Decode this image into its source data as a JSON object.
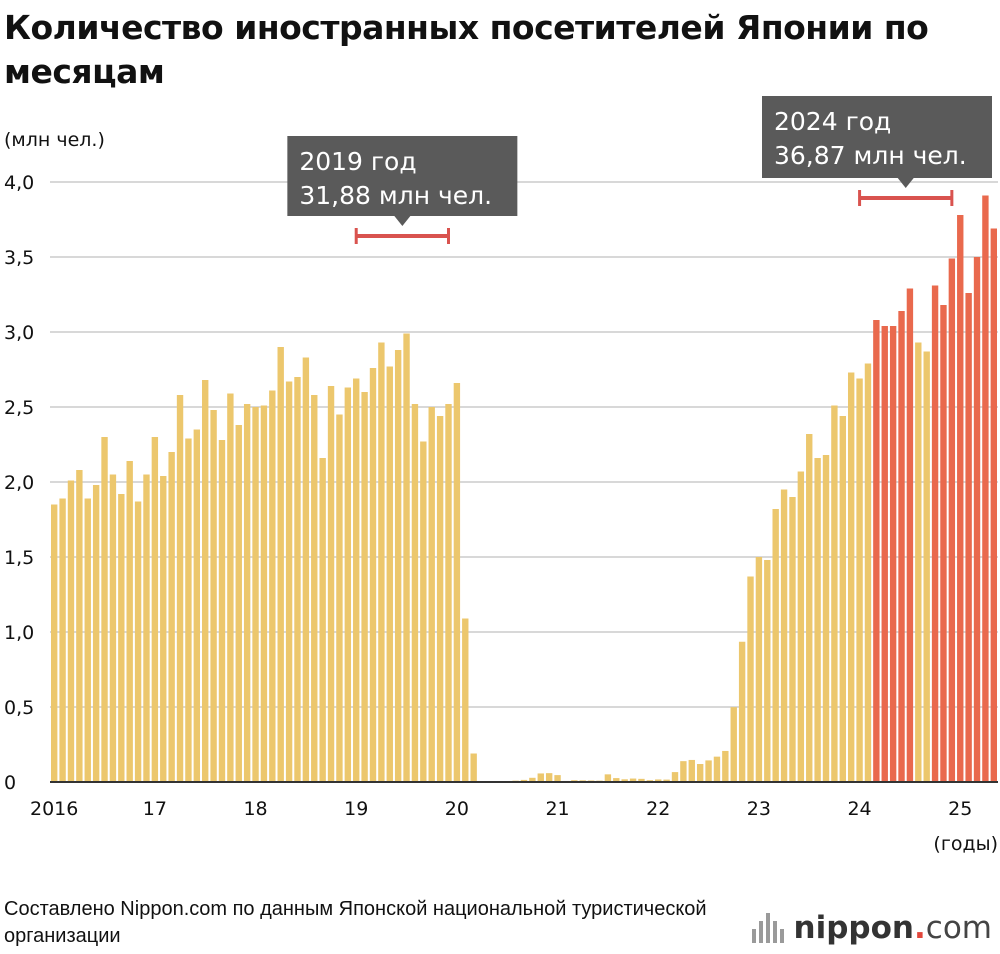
{
  "title": "Количество иностранных посетителей Японии по месяцам",
  "source": "Составлено Nippon.com по данным Японской национальной туристической организации",
  "logo": {
    "name": "nippon",
    "dot": ".",
    "suffix": "com"
  },
  "colors": {
    "yellow": "#ECC76D",
    "red": "#E9694D",
    "grid": "#cccccc",
    "callout_bg": "#5a5a5a",
    "bracket": "#d9534f"
  },
  "chart_data": {
    "type": "bar",
    "title": "Количество иностранных посетителей Японии по месяцам",
    "ylabel": "(млн чел.)",
    "xlabel": "(годы)",
    "ylim": [
      0,
      4.0
    ],
    "yticks": [
      0,
      0.5,
      1.0,
      1.5,
      2.0,
      2.5,
      3.0,
      3.5,
      4.0
    ],
    "ytick_labels": [
      "0",
      "0,5",
      "1,0",
      "1,5",
      "2,0",
      "2,5",
      "3,0",
      "3,5",
      "4,0"
    ],
    "xtick_labels": [
      "2016",
      "17",
      "18",
      "19",
      "20",
      "21",
      "22",
      "23",
      "24",
      "25"
    ],
    "annotations": [
      {
        "year": "2019",
        "line1": "2019 год",
        "line2": "31,88 млн чел."
      },
      {
        "year": "2024",
        "line1": "2024 год",
        "line2": "36,87 млн чел."
      }
    ],
    "series": [
      {
        "year": "2016",
        "highlight": false,
        "values": [
          1.85,
          1.89,
          2.01,
          2.08,
          1.89,
          1.98,
          2.3,
          2.05,
          1.92,
          2.14,
          1.87,
          2.05
        ]
      },
      {
        "year": "2017",
        "highlight": false,
        "values": [
          2.3,
          2.04,
          2.2,
          2.58,
          2.29,
          2.35,
          2.68,
          2.48,
          2.28,
          2.59,
          2.38,
          2.52
        ]
      },
      {
        "year": "2018",
        "highlight": false,
        "values": [
          2.5,
          2.51,
          2.61,
          2.9,
          2.67,
          2.7,
          2.83,
          2.58,
          2.16,
          2.64,
          2.45,
          2.63
        ]
      },
      {
        "year": "2019",
        "highlight": false,
        "values": [
          2.69,
          2.6,
          2.76,
          2.93,
          2.77,
          2.88,
          2.99,
          2.52,
          2.27,
          2.5,
          2.44,
          2.52
        ]
      },
      {
        "year": "2020",
        "highlight": false,
        "values": [
          2.66,
          1.09,
          0.19,
          0.003,
          0.002,
          0.003,
          0.004,
          0.009,
          0.014,
          0.028,
          0.057,
          0.059
        ]
      },
      {
        "year": "2021",
        "highlight": false,
        "values": [
          0.046,
          0.007,
          0.012,
          0.011,
          0.01,
          0.009,
          0.051,
          0.026,
          0.018,
          0.023,
          0.021,
          0.012
        ]
      },
      {
        "year": "2022",
        "highlight": false,
        "values": [
          0.017,
          0.016,
          0.066,
          0.139,
          0.147,
          0.12,
          0.144,
          0.169,
          0.207,
          0.499,
          0.935,
          1.37
        ]
      },
      {
        "year": "2023",
        "highlight": false,
        "values": [
          1.5,
          1.48,
          1.82,
          1.95,
          1.9,
          2.07,
          2.32,
          2.16,
          2.18,
          2.51,
          2.44,
          2.73
        ]
      },
      {
        "year": "2024",
        "highlight": false,
        "values": [
          2.69,
          2.79
        ]
      },
      {
        "year": "2024",
        "highlight": true,
        "values": [
          3.08,
          3.04,
          3.04,
          3.14,
          3.29
        ]
      },
      {
        "year": "2024",
        "highlight": false,
        "values": [
          2.93,
          2.87
        ]
      },
      {
        "year": "2024",
        "highlight": true,
        "values": [
          3.31,
          3.18,
          3.49
        ]
      },
      {
        "year": "2025",
        "highlight": true,
        "values": [
          3.78,
          3.26,
          3.5,
          3.91,
          3.69
        ]
      }
    ]
  }
}
